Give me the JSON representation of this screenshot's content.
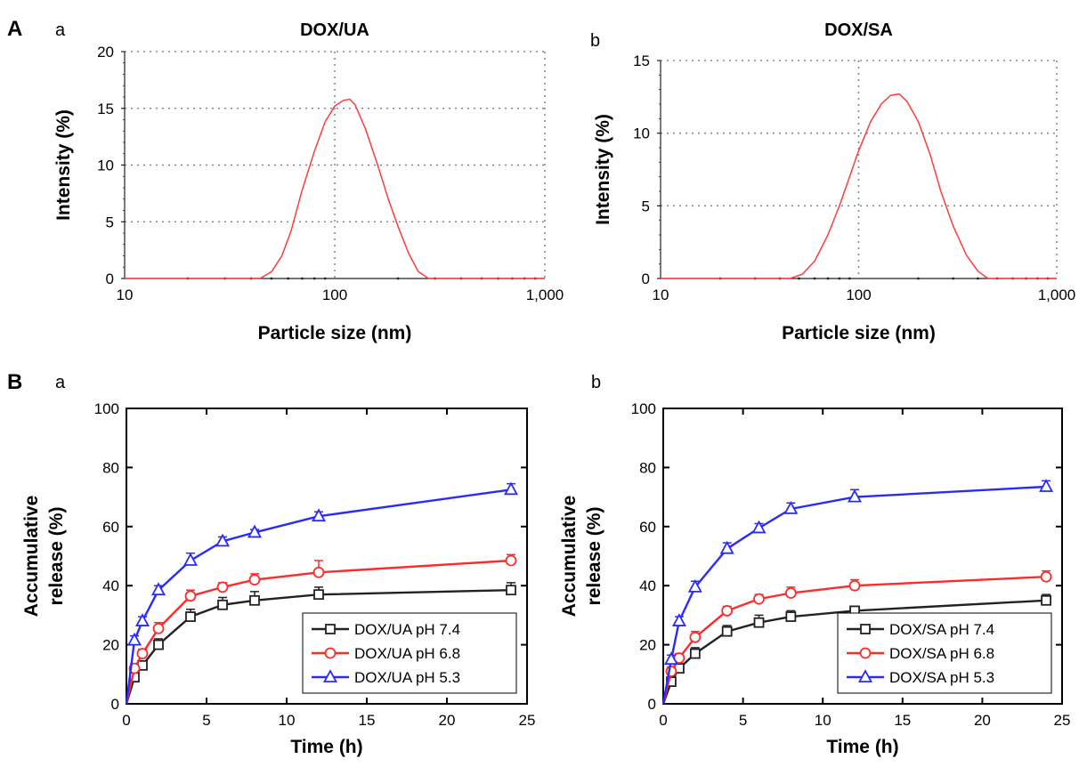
{
  "panels": {
    "A": {
      "label": "A"
    },
    "B": {
      "label": "B"
    }
  },
  "chart_data": [
    {
      "id": "Aa",
      "type": "line",
      "sublabel": "a",
      "title": "DOX/UA",
      "xlabel": "Particle size (nm)",
      "ylabel": "Intensity (%)",
      "xscale": "log",
      "xlim": [
        10,
        1000
      ],
      "ylim": [
        0,
        20
      ],
      "xticks": [
        10,
        100,
        1000
      ],
      "xtick_labels": [
        "10",
        "100",
        "1,000"
      ],
      "yticks": [
        0,
        5,
        10,
        15,
        20
      ],
      "ytick_labels": [
        "0",
        "5",
        "10",
        "15",
        "20"
      ],
      "grid": true,
      "series": [
        {
          "color": "#ff3b3b",
          "x": [
            10,
            44,
            50,
            56,
            62,
            70,
            80,
            90,
            100,
            110,
            118,
            125,
            140,
            160,
            180,
            200,
            225,
            250,
            280,
            320,
            1000
          ],
          "y": [
            0,
            0,
            0.6,
            2.0,
            4.2,
            7.8,
            11.2,
            13.8,
            15.2,
            15.7,
            15.8,
            15.3,
            13.2,
            10.0,
            7.0,
            4.6,
            2.2,
            0.6,
            0,
            0,
            0
          ]
        }
      ]
    },
    {
      "id": "Ab",
      "type": "line",
      "sublabel": "b",
      "title": "DOX/SA",
      "xlabel": "Particle size (nm)",
      "ylabel": "Intensity (%)",
      "xscale": "log",
      "xlim": [
        10,
        1000
      ],
      "ylim": [
        0,
        15
      ],
      "xticks": [
        10,
        100,
        1000
      ],
      "xtick_labels": [
        "10",
        "100",
        "1,000"
      ],
      "yticks": [
        0,
        5,
        10,
        15
      ],
      "ytick_labels": [
        "0",
        "5",
        "10",
        "15"
      ],
      "grid": true,
      "series": [
        {
          "color": "#ff3b3b",
          "x": [
            10,
            45,
            52,
            60,
            70,
            80,
            90,
            100,
            115,
            130,
            145,
            160,
            175,
            200,
            230,
            260,
            300,
            350,
            400,
            450,
            480,
            1000
          ],
          "y": [
            0,
            0,
            0.3,
            1.2,
            3.0,
            5.0,
            7.0,
            8.8,
            10.8,
            12.0,
            12.6,
            12.7,
            12.2,
            10.8,
            8.5,
            6.0,
            3.6,
            1.6,
            0.5,
            0,
            0,
            0
          ]
        }
      ]
    },
    {
      "id": "Ba",
      "type": "line",
      "sublabel": "a",
      "title": "",
      "xlabel": "Time (h)",
      "ylabel_lines": [
        "Accumulative",
        "release (%)"
      ],
      "xlim": [
        0,
        25
      ],
      "ylim": [
        0,
        100
      ],
      "xticks": [
        0,
        5,
        10,
        15,
        20,
        25
      ],
      "yticks": [
        0,
        20,
        40,
        60,
        80,
        100
      ],
      "grid": false,
      "legend": "bottom-right",
      "x": [
        0,
        0.5,
        1,
        2,
        4,
        6,
        8,
        12,
        24
      ],
      "series": [
        {
          "name": "DOX/UA pH 7.4",
          "color": "#222222",
          "marker": "square",
          "values": [
            0,
            9,
            13,
            20,
            29.5,
            33.5,
            35,
            37,
            38.5
          ],
          "errors": [
            0,
            1.5,
            1.5,
            2,
            2.5,
            2.5,
            3,
            2.5,
            2.5
          ]
        },
        {
          "name": "DOX/UA pH 6.8",
          "color": "#ff2a2a",
          "marker": "circle",
          "values": [
            0,
            12,
            17,
            25.5,
            36.5,
            39.5,
            42,
            44.5,
            48.5
          ],
          "errors": [
            0,
            1.5,
            1.5,
            2,
            2,
            1.5,
            2,
            4,
            2
          ]
        },
        {
          "name": "DOX/UA pH 5.3",
          "color": "#2a2aff",
          "marker": "triangle",
          "values": [
            0,
            21.5,
            28,
            38.5,
            48.5,
            55,
            58,
            63.5,
            72.5
          ],
          "errors": [
            0,
            1.5,
            1.5,
            1.5,
            2.5,
            1.5,
            1,
            1.5,
            2
          ]
        }
      ]
    },
    {
      "id": "Bb",
      "type": "line",
      "sublabel": "b",
      "title": "",
      "xlabel": "Time (h)",
      "ylabel_lines": [
        "Accumulative",
        "release (%)"
      ],
      "xlim": [
        0,
        25
      ],
      "ylim": [
        0,
        100
      ],
      "xticks": [
        0,
        5,
        10,
        15,
        20,
        25
      ],
      "yticks": [
        0,
        20,
        40,
        60,
        80,
        100
      ],
      "grid": false,
      "legend": "bottom-right",
      "x": [
        0,
        0.5,
        1,
        2,
        4,
        6,
        8,
        12,
        24
      ],
      "series": [
        {
          "name": "DOX/SA pH 7.4",
          "color": "#222222",
          "marker": "square",
          "values": [
            0,
            7.5,
            12,
            17,
            24.5,
            27.5,
            29.5,
            31.5,
            35
          ],
          "errors": [
            0,
            1.5,
            1.5,
            2,
            2,
            2.5,
            2,
            1.5,
            2
          ]
        },
        {
          "name": "DOX/SA pH 6.8",
          "color": "#ff2a2a",
          "marker": "circle",
          "values": [
            0,
            11,
            15.5,
            22.5,
            31.5,
            35.5,
            37.5,
            40,
            43
          ],
          "errors": [
            0,
            1.5,
            1.5,
            2,
            1.5,
            1.5,
            2,
            2,
            2
          ]
        },
        {
          "name": "DOX/SA pH 5.3",
          "color": "#2a2aff",
          "marker": "triangle",
          "values": [
            0,
            15,
            28,
            39.5,
            52.5,
            59.5,
            66,
            70,
            73.5
          ],
          "errors": [
            0,
            1.5,
            1.5,
            2,
            2,
            1.5,
            2,
            2.5,
            2
          ]
        }
      ]
    }
  ]
}
